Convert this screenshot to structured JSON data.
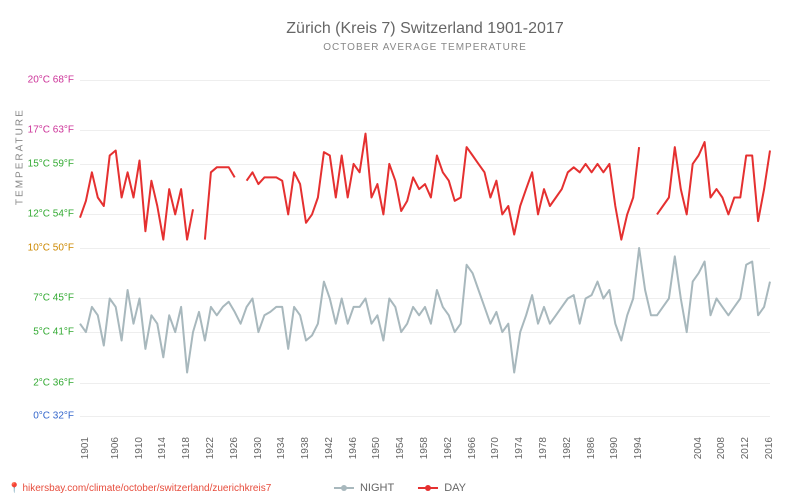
{
  "title": "Zürich (Kreis 7) Switzerland 1901-2017",
  "subtitle": "OCTOBER AVERAGE TEMPERATURE",
  "y_axis_label": "TEMPERATURE",
  "type": "line",
  "y_axis": {
    "min": -1,
    "max": 21,
    "ticks": [
      {
        "c": 0,
        "labelC": "0°C",
        "labelF": "32°F",
        "color": "#3366cc"
      },
      {
        "c": 2,
        "labelC": "2°C",
        "labelF": "36°F",
        "color": "#33aa33"
      },
      {
        "c": 5,
        "labelC": "5°C",
        "labelF": "41°F",
        "color": "#33aa33"
      },
      {
        "c": 7,
        "labelC": "7°C",
        "labelF": "45°F",
        "color": "#33aa33"
      },
      {
        "c": 10,
        "labelC": "10°C",
        "labelF": "50°F",
        "color": "#cc8800"
      },
      {
        "c": 12,
        "labelC": "12°C",
        "labelF": "54°F",
        "color": "#33aa33"
      },
      {
        "c": 15,
        "labelC": "15°C",
        "labelF": "59°F",
        "color": "#33aa33"
      },
      {
        "c": 17,
        "labelC": "17°C",
        "labelF": "63°F",
        "color": "#cc3399"
      },
      {
        "c": 20,
        "labelC": "20°C",
        "labelF": "68°F",
        "color": "#cc3399"
      }
    ]
  },
  "x_axis": {
    "min": 1901,
    "max": 2017,
    "ticks": [
      1901,
      1906,
      1910,
      1914,
      1918,
      1922,
      1926,
      1930,
      1934,
      1938,
      1942,
      1946,
      1950,
      1954,
      1958,
      1962,
      1966,
      1970,
      1974,
      1978,
      1982,
      1986,
      1990,
      1994,
      2004,
      2008,
      2012,
      2016
    ]
  },
  "colors": {
    "night": "#a8b8bd",
    "day": "#e53030",
    "grid": "#eeeeee",
    "background": "#ffffff",
    "title_text": "#666666",
    "url": "#e74c3c"
  },
  "line_width": 2,
  "legend": {
    "night": "NIGHT",
    "day": "DAY"
  },
  "url": "hikersbay.com/climate/october/switzerland/zuerichkreis7",
  "series": {
    "day": {
      "segments": [
        [
          [
            1901,
            11.8
          ],
          [
            1902,
            12.8
          ],
          [
            1903,
            14.5
          ],
          [
            1904,
            13.0
          ],
          [
            1905,
            12.5
          ],
          [
            1906,
            15.5
          ],
          [
            1907,
            15.8
          ],
          [
            1908,
            13.0
          ],
          [
            1909,
            14.5
          ],
          [
            1910,
            13.0
          ],
          [
            1911,
            15.2
          ],
          [
            1912,
            11.0
          ],
          [
            1913,
            14.0
          ],
          [
            1914,
            12.5
          ],
          [
            1915,
            10.5
          ],
          [
            1916,
            13.5
          ],
          [
            1917,
            12.0
          ],
          [
            1918,
            13.5
          ],
          [
            1919,
            10.5
          ],
          [
            1920,
            12.3
          ]
        ],
        [
          [
            1922,
            10.5
          ],
          [
            1923,
            14.5
          ],
          [
            1924,
            14.8
          ],
          [
            1925,
            14.8
          ],
          [
            1926,
            14.8
          ],
          [
            1927,
            14.2
          ]
        ],
        [
          [
            1929,
            14.0
          ],
          [
            1930,
            14.5
          ],
          [
            1931,
            13.8
          ],
          [
            1932,
            14.2
          ],
          [
            1933,
            14.2
          ],
          [
            1934,
            14.2
          ],
          [
            1935,
            14.0
          ],
          [
            1936,
            12.0
          ],
          [
            1937,
            14.5
          ],
          [
            1938,
            13.8
          ],
          [
            1939,
            11.5
          ],
          [
            1940,
            12.0
          ],
          [
            1941,
            13.0
          ],
          [
            1942,
            15.7
          ],
          [
            1943,
            15.5
          ],
          [
            1944,
            13.0
          ],
          [
            1945,
            15.5
          ],
          [
            1946,
            13.0
          ],
          [
            1947,
            15.0
          ],
          [
            1948,
            14.5
          ],
          [
            1949,
            16.8
          ],
          [
            1950,
            13.0
          ],
          [
            1951,
            13.8
          ],
          [
            1952,
            12.0
          ],
          [
            1953,
            15.0
          ],
          [
            1954,
            14.0
          ],
          [
            1955,
            12.2
          ],
          [
            1956,
            12.8
          ],
          [
            1957,
            14.2
          ],
          [
            1958,
            13.5
          ],
          [
            1959,
            13.8
          ],
          [
            1960,
            13.0
          ],
          [
            1961,
            15.5
          ],
          [
            1962,
            14.5
          ],
          [
            1963,
            14.0
          ],
          [
            1964,
            12.8
          ],
          [
            1965,
            13.0
          ],
          [
            1966,
            16.0
          ],
          [
            1967,
            15.5
          ],
          [
            1968,
            15.0
          ],
          [
            1969,
            14.5
          ],
          [
            1970,
            13.0
          ],
          [
            1971,
            14.0
          ],
          [
            1972,
            12.0
          ],
          [
            1973,
            12.5
          ],
          [
            1974,
            10.8
          ],
          [
            1975,
            12.5
          ],
          [
            1976,
            13.5
          ],
          [
            1977,
            14.5
          ],
          [
            1978,
            12.0
          ],
          [
            1979,
            13.5
          ],
          [
            1980,
            12.5
          ],
          [
            1981,
            13.0
          ],
          [
            1982,
            13.5
          ],
          [
            1983,
            14.5
          ],
          [
            1984,
            14.8
          ],
          [
            1985,
            14.5
          ],
          [
            1986,
            15.0
          ],
          [
            1987,
            14.5
          ],
          [
            1988,
            15.0
          ],
          [
            1989,
            14.5
          ],
          [
            1990,
            15.0
          ],
          [
            1991,
            12.5
          ],
          [
            1992,
            10.5
          ],
          [
            1993,
            12.0
          ],
          [
            1994,
            13.0
          ],
          [
            1995,
            16.0
          ]
        ],
        [
          [
            1998,
            12.0
          ],
          [
            1999,
            12.5
          ],
          [
            2000,
            13.0
          ],
          [
            2001,
            16.0
          ],
          [
            2002,
            13.5
          ],
          [
            2003,
            12.0
          ],
          [
            2004,
            15.0
          ],
          [
            2005,
            15.5
          ],
          [
            2006,
            16.3
          ],
          [
            2007,
            13.0
          ],
          [
            2008,
            13.5
          ],
          [
            2009,
            13.0
          ],
          [
            2010,
            12.0
          ],
          [
            2011,
            13.0
          ],
          [
            2012,
            13.0
          ],
          [
            2013,
            15.5
          ],
          [
            2014,
            15.5
          ],
          [
            2015,
            11.6
          ],
          [
            2016,
            13.5
          ],
          [
            2017,
            15.8
          ]
        ]
      ]
    },
    "night": {
      "segments": [
        [
          [
            1901,
            5.5
          ],
          [
            1902,
            5.0
          ],
          [
            1903,
            6.5
          ],
          [
            1904,
            6.0
          ],
          [
            1905,
            4.2
          ],
          [
            1906,
            7.0
          ],
          [
            1907,
            6.5
          ],
          [
            1908,
            4.5
          ],
          [
            1909,
            7.5
          ],
          [
            1910,
            5.5
          ],
          [
            1911,
            7.0
          ],
          [
            1912,
            4.0
          ],
          [
            1913,
            6.0
          ],
          [
            1914,
            5.5
          ],
          [
            1915,
            3.5
          ],
          [
            1916,
            6.0
          ],
          [
            1917,
            5.0
          ],
          [
            1918,
            6.5
          ],
          [
            1919,
            2.6
          ],
          [
            1920,
            5.0
          ],
          [
            1921,
            6.2
          ],
          [
            1922,
            4.5
          ],
          [
            1923,
            6.5
          ],
          [
            1924,
            6.0
          ],
          [
            1925,
            6.5
          ],
          [
            1926,
            6.8
          ],
          [
            1927,
            6.2
          ],
          [
            1928,
            5.5
          ],
          [
            1929,
            6.5
          ],
          [
            1930,
            7.0
          ],
          [
            1931,
            5.0
          ],
          [
            1932,
            6.0
          ],
          [
            1933,
            6.2
          ],
          [
            1934,
            6.5
          ],
          [
            1935,
            6.5
          ],
          [
            1936,
            4.0
          ],
          [
            1937,
            6.5
          ],
          [
            1938,
            6.0
          ],
          [
            1939,
            4.5
          ],
          [
            1940,
            4.8
          ],
          [
            1941,
            5.5
          ],
          [
            1942,
            8.0
          ],
          [
            1943,
            7.0
          ],
          [
            1944,
            5.5
          ],
          [
            1945,
            7.0
          ],
          [
            1946,
            5.5
          ],
          [
            1947,
            6.5
          ],
          [
            1948,
            6.5
          ],
          [
            1949,
            7.0
          ],
          [
            1950,
            5.5
          ],
          [
            1951,
            6.0
          ],
          [
            1952,
            4.5
          ],
          [
            1953,
            7.0
          ],
          [
            1954,
            6.5
          ],
          [
            1955,
            5.0
          ],
          [
            1956,
            5.5
          ],
          [
            1957,
            6.5
          ],
          [
            1958,
            6.0
          ],
          [
            1959,
            6.5
          ],
          [
            1960,
            5.5
          ],
          [
            1961,
            7.5
          ],
          [
            1962,
            6.5
          ],
          [
            1963,
            6.0
          ],
          [
            1964,
            5.0
          ],
          [
            1965,
            5.5
          ],
          [
            1966,
            9.0
          ],
          [
            1967,
            8.5
          ],
          [
            1968,
            7.5
          ],
          [
            1969,
            6.5
          ],
          [
            1970,
            5.5
          ],
          [
            1971,
            6.2
          ],
          [
            1972,
            5.0
          ],
          [
            1973,
            5.5
          ],
          [
            1974,
            2.6
          ],
          [
            1975,
            5.0
          ],
          [
            1976,
            6.0
          ],
          [
            1977,
            7.2
          ],
          [
            1978,
            5.5
          ],
          [
            1979,
            6.5
          ],
          [
            1980,
            5.5
          ],
          [
            1981,
            6.0
          ],
          [
            1982,
            6.5
          ],
          [
            1983,
            7.0
          ],
          [
            1984,
            7.2
          ],
          [
            1985,
            5.5
          ],
          [
            1986,
            7.0
          ],
          [
            1987,
            7.2
          ],
          [
            1988,
            8.0
          ],
          [
            1989,
            7.0
          ],
          [
            1990,
            7.5
          ],
          [
            1991,
            5.5
          ],
          [
            1992,
            4.5
          ],
          [
            1993,
            6.0
          ],
          [
            1994,
            7.0
          ],
          [
            1995,
            10.0
          ],
          [
            1996,
            7.5
          ],
          [
            1997,
            6.0
          ],
          [
            1998,
            6.0
          ],
          [
            1999,
            6.5
          ],
          [
            2000,
            7.0
          ],
          [
            2001,
            9.5
          ],
          [
            2002,
            7.0
          ],
          [
            2003,
            5.0
          ],
          [
            2004,
            8.0
          ],
          [
            2005,
            8.5
          ],
          [
            2006,
            9.2
          ],
          [
            2007,
            6.0
          ],
          [
            2008,
            7.0
          ],
          [
            2009,
            6.5
          ],
          [
            2010,
            6.0
          ],
          [
            2011,
            6.5
          ],
          [
            2012,
            7.0
          ],
          [
            2013,
            9.0
          ],
          [
            2014,
            9.2
          ],
          [
            2015,
            6.0
          ],
          [
            2016,
            6.5
          ],
          [
            2017,
            8.0
          ]
        ]
      ]
    }
  },
  "title_fontsize": 16,
  "subtitle_fontsize": 10,
  "tick_fontsize": 10,
  "legend_fontsize": 11
}
